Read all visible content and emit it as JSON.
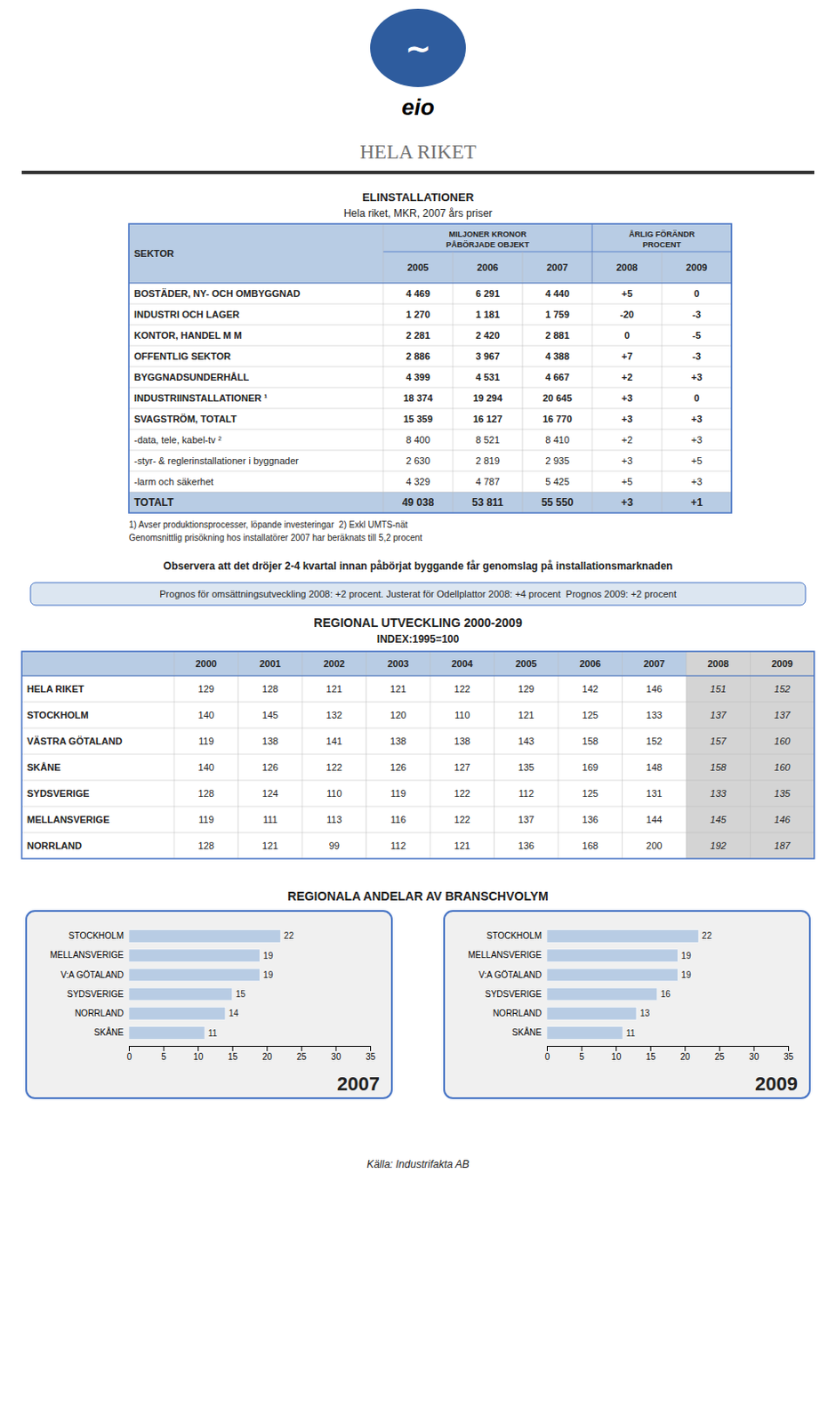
{
  "logo": {
    "symbol": "∼",
    "text": "eio"
  },
  "page_title": "HELA RIKET",
  "observation_text": "Observera att det dröjer 2-4 kvartal innan påbörjat byggande får genomslag på installationsmarknaden",
  "prognos_text": "Prognos för omsättningsutveckling 2008: +2 procent. Justerat för Odellplattor 2008: +4 procent  Prognos 2009: +2 procent",
  "bar_section_title": "REGIONALA ANDELAR AV BRANSCHVOLYM",
  "footer_text": "Källa: Industrifakta AB",
  "chart_data": [
    {
      "type": "table",
      "title": "ELINSTALLATIONER",
      "subtitle": "Hela riket, MKR, 2007 års priser",
      "first_column": "SEKTOR",
      "column_groups": [
        {
          "label": "MILJONER KRONOR",
          "sublabel": "PÅBÖRJADE OBJEKT",
          "columns": [
            "2005",
            "2006",
            "2007"
          ]
        },
        {
          "label": "ÅRLIG FÖRÄNDR",
          "sublabel": "PROCENT",
          "columns": [
            "2008",
            "2009"
          ]
        }
      ],
      "rows": [
        [
          "BOSTÄDER, NY- OCH OMBYGGNAD",
          "4 469",
          "6 291",
          "4 440",
          "+5",
          "0"
        ],
        [
          "INDUSTRI OCH LAGER",
          "1 270",
          "1 181",
          "1 759",
          "-20",
          "-3"
        ],
        [
          "KONTOR, HANDEL M M",
          "2 281",
          "2 420",
          "2 881",
          "0",
          "-5"
        ],
        [
          "OFFENTLIG SEKTOR",
          "2 886",
          "3 967",
          "4 388",
          "+7",
          "-3"
        ],
        [
          "BYGGNADSUNDERHÅLL",
          "4 399",
          "4 531",
          "4 667",
          "+2",
          "+3"
        ],
        [
          "INDUSTRIINSTALLATIONER ¹",
          "18 374",
          "19 294",
          "20 645",
          "+3",
          "0"
        ],
        [
          "SVAGSTRÖM, TOTALT",
          "15 359",
          "16 127",
          "16 770",
          "+3",
          "+3"
        ],
        [
          "-data, tele, kabel-tv ²",
          "8 400",
          "8 521",
          "8 410",
          "+2",
          "+3"
        ],
        [
          "-styr- & reglerinstallationer i byggnader",
          "2 630",
          "2 819",
          "2 935",
          "+3",
          "+5"
        ],
        [
          "-larm och säkerhet",
          "4 329",
          "4 787",
          "5 425",
          "+5",
          "+3"
        ],
        [
          "TOTALT",
          "49 038",
          "53 811",
          "55 550",
          "+3",
          "+1"
        ]
      ],
      "footnotes": [
        "1) Avser produktionsprocesser, löpande investeringar  2) Exkl UMTS-nät",
        "Genomsnittlig prisökning hos installatörer 2007 har beräknats till 5,2 procent"
      ]
    },
    {
      "type": "table",
      "title": "REGIONAL UTVECKLING 2000-2009",
      "subtitle": "INDEX:1995=100",
      "columns": [
        "2000",
        "2001",
        "2002",
        "2003",
        "2004",
        "2005",
        "2006",
        "2007",
        "2008",
        "2009"
      ],
      "rows": [
        [
          "HELA RIKET",
          "129",
          "128",
          "121",
          "121",
          "122",
          "129",
          "142",
          "146",
          "151",
          "152"
        ],
        [
          "STOCKHOLM",
          "140",
          "145",
          "132",
          "120",
          "110",
          "121",
          "125",
          "133",
          "137",
          "137"
        ],
        [
          "VÄSTRA GÖTALAND",
          "119",
          "138",
          "141",
          "138",
          "138",
          "143",
          "158",
          "152",
          "157",
          "160"
        ],
        [
          "SKÅNE",
          "140",
          "126",
          "122",
          "126",
          "127",
          "135",
          "169",
          "148",
          "158",
          "160"
        ],
        [
          "SYDSVERIGE",
          "128",
          "124",
          "110",
          "119",
          "122",
          "112",
          "125",
          "131",
          "133",
          "135"
        ],
        [
          "MELLANSVERIGE",
          "119",
          "111",
          "113",
          "116",
          "122",
          "137",
          "136",
          "144",
          "145",
          "146"
        ],
        [
          "NORRLAND",
          "128",
          "121",
          "99",
          "112",
          "121",
          "136",
          "168",
          "200",
          "192",
          "187"
        ]
      ]
    },
    {
      "type": "bar",
      "title": "2007",
      "orientation": "horizontal",
      "categories": [
        "STOCKHOLM",
        "MELLANSVERIGE",
        "V:A GÖTALAND",
        "SYDSVERIGE",
        "NORRLAND",
        "SKÅNE"
      ],
      "values": [
        22,
        19,
        19,
        15,
        14,
        11
      ],
      "color": "#b8cce4",
      "xlim": [
        0,
        35
      ],
      "xticks": [
        0,
        5,
        10,
        15,
        20,
        25,
        30,
        35
      ],
      "data_labels": true,
      "grid": false
    },
    {
      "type": "bar",
      "title": "2009",
      "orientation": "horizontal",
      "categories": [
        "STOCKHOLM",
        "MELLANSVERIGE",
        "V:A GÖTALAND",
        "SYDSVERIGE",
        "NORRLAND",
        "SKÅNE"
      ],
      "values": [
        22,
        19,
        19,
        16,
        13,
        11
      ],
      "color": "#b8cce4",
      "xlim": [
        0,
        35
      ],
      "xticks": [
        0,
        5,
        10,
        15,
        20,
        25,
        30,
        35
      ],
      "data_labels": true,
      "grid": false
    }
  ]
}
